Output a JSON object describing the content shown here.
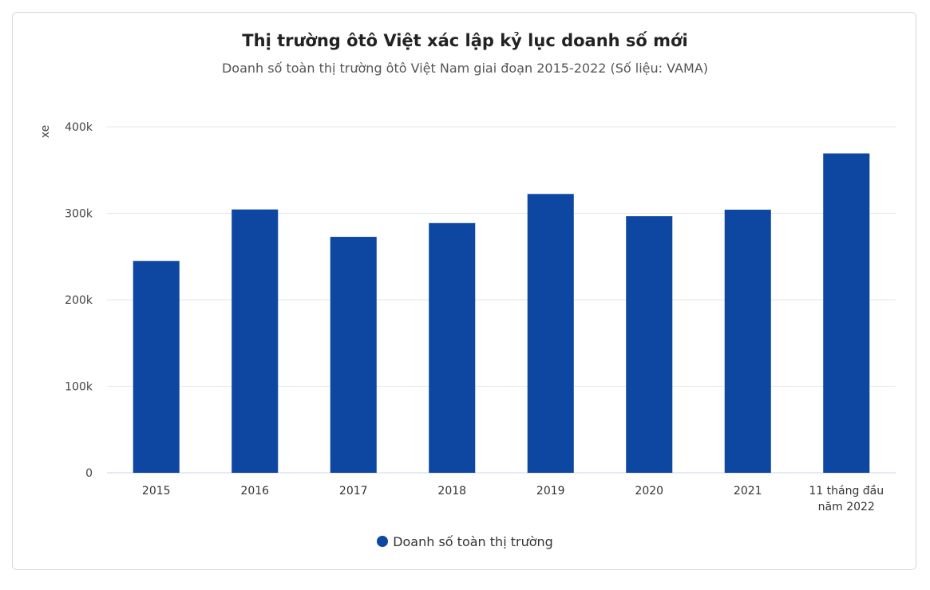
{
  "chart_data": {
    "type": "bar",
    "title": "Thị trường ôtô Việt xác lập kỷ lục doanh số mới",
    "subtitle": "Doanh số toàn thị trường ôtô Việt Nam giai đoạn 2015-2022 (Số liệu: VAMA)",
    "ylabel": "xe",
    "xlabel": "",
    "ylim": [
      0,
      400000
    ],
    "yticks": [
      0,
      100000,
      200000,
      300000,
      400000
    ],
    "ytick_labels": [
      "0",
      "100k",
      "200k",
      "300k",
      "400k"
    ],
    "categories": [
      [
        "2015"
      ],
      [
        "2016"
      ],
      [
        "2017"
      ],
      [
        "2018"
      ],
      [
        "2019"
      ],
      [
        "2020"
      ],
      [
        "2021"
      ],
      [
        "11 tháng đầu",
        "năm 2022"
      ]
    ],
    "series": [
      {
        "name": "Doanh số toàn thị trường",
        "color": "#0d47a1",
        "values": [
          244914,
          304427,
          272750,
          288683,
          322322,
          296634,
          304149,
          369161
        ]
      }
    ],
    "grid": true,
    "legend": "bottom-center"
  }
}
